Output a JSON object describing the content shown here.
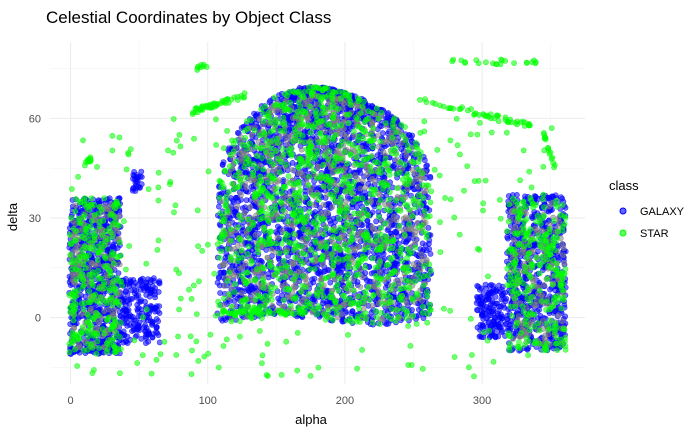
{
  "chart_data": {
    "type": "scatter",
    "title": "Celestial Coordinates by Object Class",
    "xlabel": "alpha",
    "ylabel": "delta",
    "xlim": [
      -15,
      375
    ],
    "ylim": [
      -20,
      83
    ],
    "x_ticks": [
      0,
      100,
      200,
      300
    ],
    "y_ticks": [
      0,
      30,
      60
    ],
    "grid": true,
    "legend": {
      "title": "class",
      "placement": "right",
      "entries": [
        "GALAXY",
        "STAR"
      ]
    },
    "series": [
      {
        "name": "GALAXY",
        "color": "#0000ff",
        "regions": [
          {
            "shape": "dome",
            "alpha_center": 185,
            "alpha_half_width": 78,
            "delta_min": -1,
            "delta_max": 69,
            "count": 2600
          },
          {
            "shape": "box",
            "alpha_range": [
              -1,
              37
            ],
            "delta_range": [
              -11,
              36
            ],
            "count": 700
          },
          {
            "shape": "box",
            "alpha_range": [
              37,
              65
            ],
            "delta_range": [
              -8,
              12
            ],
            "count": 200
          },
          {
            "shape": "box",
            "alpha_range": [
              45,
              52
            ],
            "delta_range": [
              38,
              44
            ],
            "count": 25
          },
          {
            "shape": "box",
            "alpha_range": [
              318,
              361
            ],
            "delta_range": [
              -10,
              37
            ],
            "count": 650
          },
          {
            "shape": "box",
            "alpha_range": [
              296,
              318
            ],
            "delta_range": [
              -6,
              10
            ],
            "count": 150
          }
        ]
      },
      {
        "name": "STAR",
        "color": "#00ff00",
        "regions": [
          {
            "shape": "dome",
            "alpha_center": 185,
            "alpha_half_width": 78,
            "delta_min": -1,
            "delta_max": 69,
            "count": 900
          },
          {
            "shape": "box",
            "alpha_range": [
              -1,
              37
            ],
            "delta_range": [
              -11,
              36
            ],
            "count": 250
          },
          {
            "shape": "box",
            "alpha_range": [
              318,
              361
            ],
            "delta_range": [
              -10,
              37
            ],
            "count": 230
          },
          {
            "shape": "scatter",
            "alpha_range": [
              0,
              360
            ],
            "delta_range": [
              -18,
              60
            ],
            "count": 300
          },
          {
            "shape": "line",
            "from": [
              88,
              62
            ],
            "to": [
              128,
              67
            ],
            "count": 50
          },
          {
            "shape": "line",
            "from": [
              90,
              75
            ],
            "to": [
              100,
              76
            ],
            "count": 8
          },
          {
            "shape": "line",
            "from": [
              250,
              66
            ],
            "to": [
              335,
              58
            ],
            "count": 50
          },
          {
            "shape": "line",
            "from": [
              275,
              77
            ],
            "to": [
              340,
              77
            ],
            "count": 22
          },
          {
            "shape": "line",
            "from": [
              100,
              1
            ],
            "to": [
              180,
              2
            ],
            "count": 40
          },
          {
            "shape": "line",
            "from": [
              10,
              46
            ],
            "to": [
              15,
              48
            ],
            "count": 12
          },
          {
            "shape": "line",
            "from": [
              345,
              55
            ],
            "to": [
              353,
              45
            ],
            "count": 16
          }
        ]
      },
      {
        "name": "",
        "color": "#808080",
        "regions": [
          {
            "shape": "dome",
            "alpha_center": 185,
            "alpha_half_width": 75,
            "delta_min": 0,
            "delta_max": 67,
            "count": 800
          },
          {
            "shape": "box",
            "alpha_range": [
              0,
              36
            ],
            "delta_range": [
              -10,
              34
            ],
            "count": 200
          },
          {
            "shape": "box",
            "alpha_range": [
              320,
              360
            ],
            "delta_range": [
              -9,
              35
            ],
            "count": 180
          }
        ]
      }
    ]
  }
}
